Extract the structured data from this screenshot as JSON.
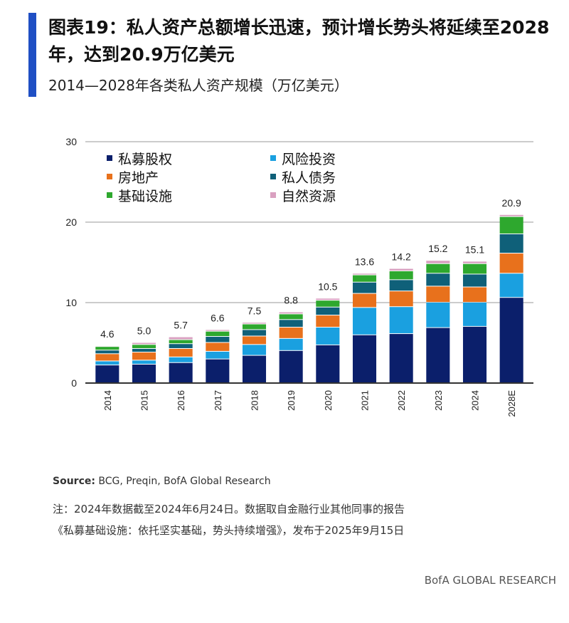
{
  "header": {
    "title": "图表19：私人资产总额增长迅速，预计增长势头将延续至2028年，达到20.9万亿美元",
    "subtitle": "2014—2028年各类私人资产规模（万亿美元）"
  },
  "chart_data": {
    "type": "bar",
    "stacked": true,
    "categories": [
      "2014",
      "2015",
      "2016",
      "2017",
      "2018",
      "2019",
      "2020",
      "2021",
      "2022",
      "2023",
      "2024",
      "2028E"
    ],
    "ylim": [
      0,
      30
    ],
    "yticks": [
      0,
      10,
      20,
      30
    ],
    "grid": true,
    "legend": "top-left",
    "totals": [
      "4.6",
      "5.0",
      "5.7",
      "6.6",
      "7.5",
      "8.8",
      "10.5",
      "13.6",
      "14.2",
      "15.2",
      "15.1",
      "20.9"
    ],
    "series": [
      {
        "name": "私募股权",
        "color": "#0b1f6b",
        "values": [
          2.2,
          2.3,
          2.5,
          2.95,
          3.4,
          4.0,
          4.7,
          5.95,
          6.1,
          6.85,
          7.0,
          10.6
        ]
      },
      {
        "name": "风险投资",
        "color": "#1aa0e0",
        "values": [
          0.5,
          0.5,
          0.7,
          0.95,
          1.35,
          1.5,
          2.2,
          3.4,
          3.35,
          3.15,
          3.0,
          3.0
        ]
      },
      {
        "name": "房地产",
        "color": "#e8711c",
        "values": [
          0.9,
          1.0,
          1.05,
          1.1,
          1.05,
          1.4,
          1.5,
          1.75,
          1.95,
          2.0,
          1.9,
          2.5
        ]
      },
      {
        "name": "私人债务",
        "color": "#0f6079",
        "values": [
          0.45,
          0.45,
          0.6,
          0.75,
          0.8,
          0.95,
          1.0,
          1.4,
          1.4,
          1.6,
          1.6,
          2.4
        ]
      },
      {
        "name": "基础设施",
        "color": "#2ea82e",
        "values": [
          0.45,
          0.5,
          0.5,
          0.65,
          0.7,
          0.7,
          0.85,
          0.9,
          1.1,
          1.2,
          1.3,
          2.15
        ]
      },
      {
        "name": "自然资源",
        "color": "#d9a0c0",
        "values": [
          0.1,
          0.25,
          0.35,
          0.2,
          0.2,
          0.25,
          0.25,
          0.2,
          0.3,
          0.4,
          0.3,
          0.25
        ]
      }
    ]
  },
  "footer": {
    "source_label": "Source:",
    "source": " BCG, Preqin, BofA Global Research",
    "note1": "注：2024年数据截至2024年6月24日。数据取自金融行业其他同事的报告",
    "note2": "《私募基础设施：依托坚实基础，势头持续增强》，发布于2025年9月15日",
    "brand": "BofA GLOBAL RESEARCH"
  }
}
